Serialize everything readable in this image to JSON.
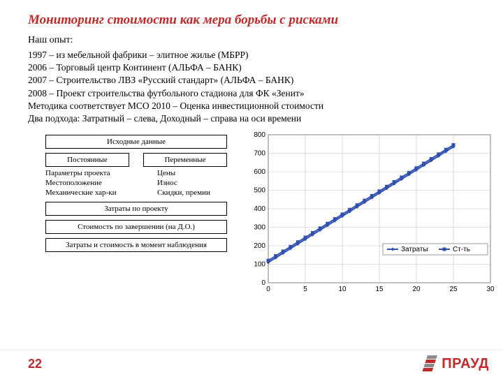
{
  "title": "Мониторинг стоимости как мера борьбы с рисками",
  "subtitle": "Наш опыт:",
  "bullets": [
    "1997 – из мебельной фабрики – элитное жилье (МБРР)",
    "2006 – Торговый центр Континент (АЛЬФА – БАНК)",
    "2007 – Строительство ЛВЗ «Русский стандарт» (АЛЬФА – БАНК)",
    "2008 – Проект строительства футбольного стадиона для ФК «Зенит»",
    "Методика соответствует МСО 2010 – Оценка инвестиционной стоимости",
    "Два подхода: Затратный – слева, Доходный – справа на оси времени"
  ],
  "left": {
    "box_source": "Исходные данные",
    "pair_left": "Постоянные",
    "pair_right": "Переменные",
    "rows": [
      {
        "l": "Параметры проекта",
        "r": "Цены"
      },
      {
        "l": "Местоположение",
        "r": "Износ"
      },
      {
        "l": "Механические хар-ки",
        "r": "Скидки, премии"
      }
    ],
    "box_costs": "Затраты по проекту",
    "box_complete": "Стоимость по завершении (на Д.О.)",
    "box_moment": "Затраты и стоимость в момент наблюдения"
  },
  "chart": {
    "type": "line",
    "background_color": "#ffffff",
    "grid_color": "#c0c0c0",
    "axis_color": "#808080",
    "xlim": [
      0,
      30
    ],
    "ylim": [
      0,
      800
    ],
    "xtick_step": 5,
    "ytick_step": 100,
    "tick_fontsize": 10,
    "series": [
      {
        "name": "Затраты",
        "color": "#3050b0",
        "marker": "diamond",
        "marker_size": 5,
        "line_width": 2,
        "x": [
          0,
          1,
          2,
          3,
          4,
          5,
          6,
          7,
          8,
          9,
          10,
          11,
          12,
          13,
          14,
          15,
          16,
          17,
          18,
          19,
          20,
          21,
          22,
          23,
          24,
          25
        ],
        "y": [
          110,
          135,
          160,
          185,
          210,
          235,
          260,
          285,
          310,
          335,
          360,
          385,
          410,
          435,
          460,
          485,
          510,
          535,
          560,
          585,
          610,
          635,
          660,
          685,
          710,
          735
        ]
      },
      {
        "name": "Ст-ть",
        "color": "#3050b0",
        "marker": "square",
        "marker_size": 5,
        "line_width": 2,
        "x": [
          0,
          1,
          2,
          3,
          4,
          5,
          6,
          7,
          8,
          9,
          10,
          11,
          12,
          13,
          14,
          15,
          16,
          17,
          18,
          19,
          20,
          21,
          22,
          23,
          24,
          25
        ],
        "y": [
          120,
          145,
          170,
          195,
          220,
          245,
          270,
          295,
          320,
          345,
          370,
          395,
          420,
          445,
          470,
          495,
          520,
          545,
          570,
          595,
          620,
          645,
          670,
          695,
          720,
          745
        ]
      }
    ],
    "legend": {
      "position": "bottom-right-inside",
      "border_color": "#808080",
      "items": [
        "Затраты",
        "Ст-ть"
      ]
    }
  },
  "footer": {
    "page_number": "22",
    "logo_text": "ПРАУД",
    "logo_colors": {
      "red": "#c12a2a",
      "gray": "#8a8a8a"
    }
  }
}
